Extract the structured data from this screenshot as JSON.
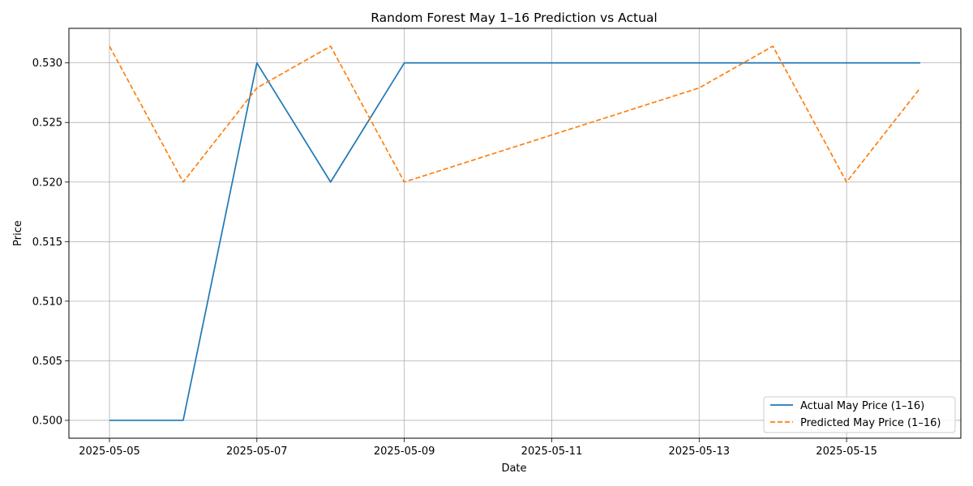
{
  "chart_data": {
    "type": "line",
    "title": "Random Forest May 1–16 Prediction vs Actual",
    "xlabel": "Date",
    "ylabel": "Price",
    "x": [
      "2025-05-05",
      "2025-05-06",
      "2025-05-07",
      "2025-05-08",
      "2025-05-09",
      "2025-05-13",
      "2025-05-14",
      "2025-05-15",
      "2025-05-16"
    ],
    "series": [
      {
        "name": "Actual May Price (1–16)",
        "color": "#1f77b4",
        "style": "solid",
        "values": [
          0.5,
          0.5,
          0.53,
          0.52,
          0.53,
          0.53,
          0.53,
          0.53,
          0.53
        ]
      },
      {
        "name": "Predicted May Price (1–16)",
        "color": "#ff7f0e",
        "style": "dashed",
        "values": [
          0.5314,
          0.52,
          0.5279,
          0.5314,
          0.52,
          0.5279,
          0.5314,
          0.52,
          0.5279
        ]
      }
    ],
    "xticks": [
      "2025-05-05",
      "2025-05-07",
      "2025-05-09",
      "2025-05-11",
      "2025-05-13",
      "2025-05-15"
    ],
    "yticks": [
      "0.500",
      "0.505",
      "0.510",
      "0.515",
      "0.520",
      "0.525",
      "0.530"
    ],
    "xlim": [
      "2025-05-04T10:48",
      "2025-05-16T13:12"
    ],
    "ylim": [
      0.4985,
      0.5329
    ],
    "grid": true,
    "legend_position": "lower-right"
  }
}
